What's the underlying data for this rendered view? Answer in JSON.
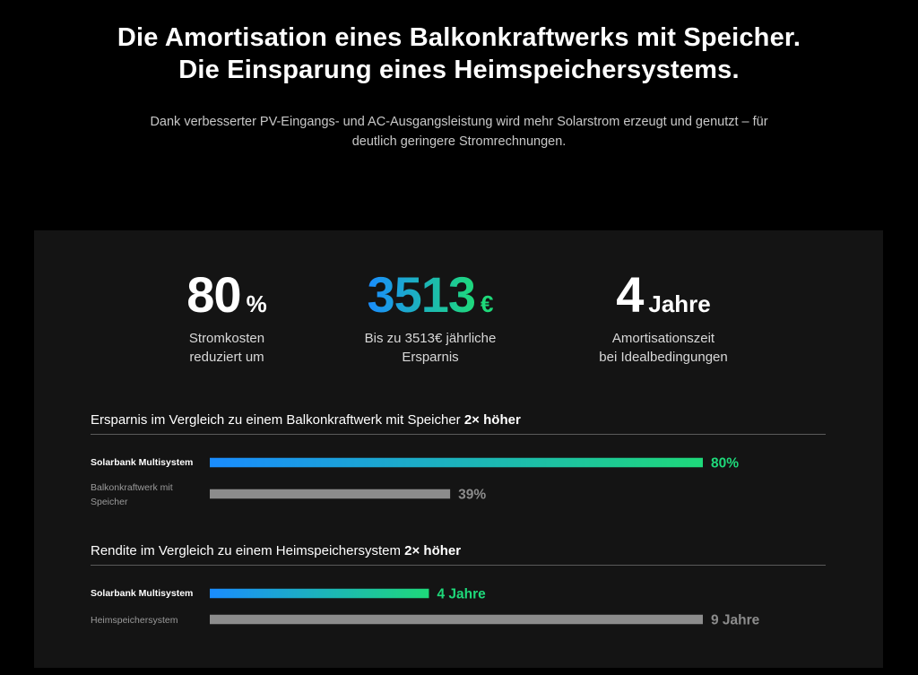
{
  "header": {
    "title_line1": "Die Amortisation eines Balkonkraftwerks mit Speicher.",
    "title_line2": "Die Einsparung eines Heimspeichersystems.",
    "subtitle": "Dank verbesserter PV-Eingangs- und AC-Ausgangsleistung wird mehr Solarstrom erzeugt und genutzt – für deutlich geringere Stromrechnungen."
  },
  "stats": [
    {
      "value": "80",
      "unit": "%",
      "label": "Stromkosten\nreduziert um"
    },
    {
      "value": "3513",
      "unit": "€",
      "label": "Bis zu 3513€ jährliche\nErsparnis"
    },
    {
      "value": "4",
      "unit": "Jahre",
      "label": "Amortisationszeit\nbei Idealbedingungen"
    }
  ],
  "colors": {
    "gradient_start": "#1a8cff",
    "gradient_end": "#1ed97a",
    "gray_bar": "#8c8c8c",
    "gray_text": "#8c8c8c",
    "panel_bg": "#141414"
  },
  "chart_data": [
    {
      "type": "bar",
      "orientation": "horizontal",
      "title": "Ersparnis im Vergleich zu einem Balkonkraftwerk mit Speicher",
      "title_emphasis": "2× höher",
      "categories": [
        "Solarbank Multisystem",
        "Balkonkraftwerk mit Speicher"
      ],
      "values": [
        80,
        39
      ],
      "value_labels": [
        "80%",
        "39%"
      ],
      "xlim": [
        0,
        80
      ]
    },
    {
      "type": "bar",
      "orientation": "horizontal",
      "title": "Rendite im Vergleich zu einem Heimspeichersystem",
      "title_emphasis": "2× höher",
      "categories": [
        "Solarbank Multisystem",
        "Heimspeichersystem"
      ],
      "values": [
        4,
        9
      ],
      "value_labels": [
        "4 Jahre",
        "9 Jahre"
      ],
      "xlim": [
        0,
        9
      ]
    }
  ]
}
